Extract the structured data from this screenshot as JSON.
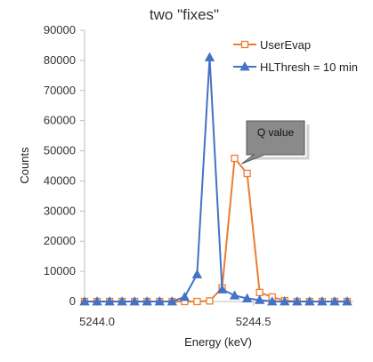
{
  "chart_data": {
    "type": "line",
    "title": "two \"fixes\"",
    "xlabel": "Energy (keV)",
    "ylabel": "Counts",
    "xlim": [
      5243.96,
      5244.82
    ],
    "ylim": [
      0,
      90000
    ],
    "x_ticks": [
      5244.0,
      5244.5
    ],
    "x_tick_labels": [
      "5244.0",
      "5244.5"
    ],
    "y_ticks": [
      0,
      10000,
      20000,
      30000,
      40000,
      50000,
      60000,
      70000,
      80000,
      90000
    ],
    "y_tick_labels": [
      "0",
      "10000",
      "20000",
      "30000",
      "40000",
      "50000",
      "60000",
      "70000",
      "80000",
      "90000"
    ],
    "grid": false,
    "legend_position": "top-right",
    "series": [
      {
        "name": "UserEvap",
        "color": "#ED7D31",
        "marker": "open-square",
        "x": [
          5243.96,
          5244.0,
          5244.04,
          5244.08,
          5244.12,
          5244.16,
          5244.2,
          5244.24,
          5244.28,
          5244.32,
          5244.36,
          5244.4,
          5244.44,
          5244.48,
          5244.52,
          5244.56,
          5244.6,
          5244.64,
          5244.68,
          5244.72,
          5244.76,
          5244.8
        ],
        "values": [
          0,
          0,
          0,
          0,
          0,
          0,
          0,
          0,
          0,
          0,
          200,
          4500,
          47500,
          42500,
          3000,
          1500,
          300,
          0,
          0,
          0,
          0,
          0
        ]
      },
      {
        "name": "HLThresh = 10 min",
        "color": "#4472C4",
        "marker": "filled-triangle",
        "x": [
          5243.96,
          5244.0,
          5244.04,
          5244.08,
          5244.12,
          5244.16,
          5244.2,
          5244.24,
          5244.28,
          5244.32,
          5244.36,
          5244.4,
          5244.44,
          5244.48,
          5244.52,
          5244.56,
          5244.6,
          5244.64,
          5244.68,
          5244.72,
          5244.76,
          5244.8
        ],
        "values": [
          0,
          0,
          0,
          0,
          0,
          0,
          0,
          0,
          1500,
          9000,
          81000,
          4000,
          2000,
          1000,
          500,
          0,
          0,
          0,
          0,
          0,
          0,
          0
        ]
      }
    ],
    "annotations": [
      {
        "text": "Q value",
        "target_series": "UserEvap",
        "target_x": 5244.44
      }
    ]
  }
}
